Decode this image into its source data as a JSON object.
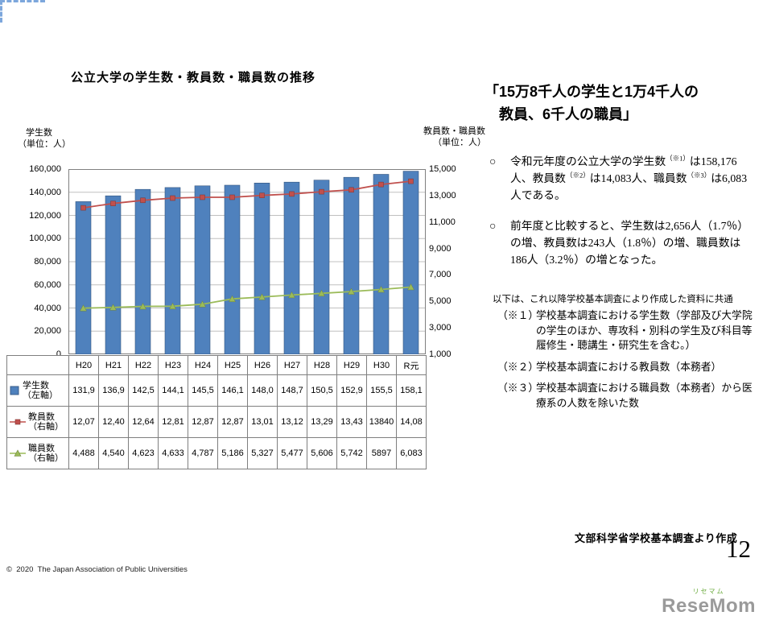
{
  "slide": {
    "title": "公立大学の学生数・教員数・職員数の推移",
    "headline_line1": "「15万8千人の学生と1万4千人の",
    "headline_line2": "教員、6千人の職員」",
    "bullet_marker": "○",
    "bullets": [
      "令和元年度の公立大学の学生数（※1）は158,176人、教員数（※2）は14,083人、職員数（※3）は6,083人である。",
      "前年度と比較すると、学生数は2,656人（1.7％）の増、教員数は243人（1.8％）の増、職員数は186人（3.2％）の増となった。"
    ],
    "note_intro": "以下は、これ以降学校基本調査により作成した資料に共通",
    "notes": [
      {
        "label": "（※１）",
        "text": "学校基本調査における学生数（学部及び大学院の学生のほか、専攻科・別科の学生及び科目等履修生・聴講生・研究生を含む。）"
      },
      {
        "label": "（※２）",
        "text": "学校基本調査における教員数（本務者）"
      },
      {
        "label": "（※３）",
        "text": "学校基本調査における職員数（本務者）から医療系の人数を除いた数"
      }
    ],
    "source": "文部科学省学校基本調査より作成",
    "page_number": "12",
    "copyright": "©  2020  The Japan Association of Public Universities",
    "logo": {
      "small": "リセマム",
      "main": "ReseMom",
      "accent_color": "#6aaa3c"
    }
  },
  "chart": {
    "left_axis_label_l1": "学生数",
    "left_axis_label_l2": "（単位：人）",
    "right_axis_label_l1": "教員数・職員数",
    "right_axis_label_l2": "（単位：人）",
    "left_ticks": [
      "160,000",
      "140,000",
      "120,000",
      "100,000",
      "80,000",
      "60,000",
      "40,000",
      "20,000",
      "0"
    ],
    "right_ticks": [
      "15,000",
      "13,000",
      "11,000",
      "9,000",
      "7,000",
      "5,000",
      "3,000",
      "1,000"
    ]
  },
  "chart_data": {
    "type": "bar",
    "title": "公立大学の学生数・教員数・職員数の推移",
    "categories": [
      "H20",
      "H21",
      "H22",
      "H23",
      "H24",
      "H25",
      "H26",
      "H27",
      "H28",
      "H29",
      "H30",
      "R元"
    ],
    "series": [
      {
        "name": "学生数（左軸）",
        "type": "bar",
        "axis": "left",
        "color": "#4f81bd",
        "values": [
          131900,
          136900,
          142500,
          144100,
          145500,
          146100,
          148000,
          148700,
          150500,
          152900,
          155500,
          158176
        ]
      },
      {
        "name": "教員数（右軸）",
        "type": "line",
        "marker": "square",
        "axis": "right",
        "color": "#c0504d",
        "values": [
          12070,
          12400,
          12640,
          12810,
          12870,
          12870,
          13010,
          13120,
          13290,
          13430,
          13840,
          14083
        ]
      },
      {
        "name": "職員数（右軸）",
        "type": "line",
        "marker": "triangle",
        "axis": "right",
        "color": "#9bbb59",
        "values": [
          4488,
          4540,
          4623,
          4633,
          4787,
          5186,
          5327,
          5477,
          5606,
          5742,
          5897,
          6083
        ]
      }
    ],
    "left_axis": {
      "min": 0,
      "max": 160000,
      "step": 20000,
      "label": "学生数（単位：人）"
    },
    "right_axis": {
      "min": 1000,
      "max": 15000,
      "step": 2000,
      "label": "教員数・職員数（単位：人）"
    },
    "grid": true,
    "legend_position": "table-left"
  },
  "table": {
    "rows": [
      {
        "legend": "学生数",
        "legend2": "（左軸）",
        "marker": "bar-square",
        "color": "#4f81bd",
        "cells": [
          "131,9",
          "136,9",
          "142,5",
          "144,1",
          "145,5",
          "146,1",
          "148,0",
          "148,7",
          "150,5",
          "152,9",
          "155,5",
          "158,1"
        ]
      },
      {
        "legend": "教員数",
        "legend2": "（右軸）",
        "marker": "line-square",
        "color": "#c0504d",
        "cells": [
          "12,07",
          "12,40",
          "12,64",
          "12,81",
          "12,87",
          "12,87",
          "13,01",
          "13,12",
          "13,29",
          "13,43",
          "13840",
          "14,08"
        ]
      },
      {
        "legend": "職員数",
        "legend2": "（右軸）",
        "marker": "line-triangle",
        "color": "#9bbb59",
        "cells": [
          "4,488",
          "4,540",
          "4,623",
          "4,633",
          "4,787",
          "5,186",
          "5,327",
          "5,477",
          "5,606",
          "5,742",
          "5897",
          "6,083"
        ]
      }
    ]
  }
}
